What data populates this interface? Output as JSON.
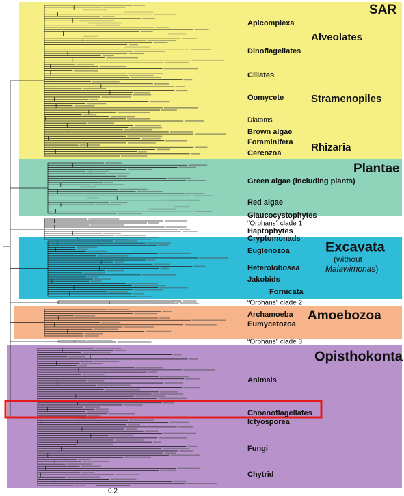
{
  "supergroups": {
    "sar": "SAR",
    "plantae": "Plantae",
    "excavata": "Excavata",
    "amoebozoa": "Amoebozoa",
    "opisthokonta": "Opisthokonta"
  },
  "groups": {
    "alveolates": "Alveolates",
    "stramenopiles": "Stramenopiles",
    "rhizaria": "Rhizaria"
  },
  "excavata_note": {
    "line1": "(without",
    "italic": "Malawimonas",
    "close": ")"
  },
  "clades": [
    "Apicomplexa",
    "Dinoflagellates",
    "Ciliates",
    "Oomycete",
    "Diatoms",
    "Brown algae",
    "Foraminifera",
    "Cercozoa",
    "Green algae (including plants)",
    "Red algae",
    "Glaucocystophytes",
    "“Orphans” clade 1",
    "Haptophytes",
    "Cryptomonads",
    "Euglenozoa",
    "Heterolobosea",
    "Jakobids",
    "Fornicata",
    "“Orphans” clade 2",
    "Archamoeba",
    "Eumycetozoa",
    "“Orphans” clade 3",
    "Animals",
    "Choanoflagellates",
    "Ictyosporea",
    "Fungi",
    "Chytrid"
  ],
  "scale_bar": "0.2"
}
